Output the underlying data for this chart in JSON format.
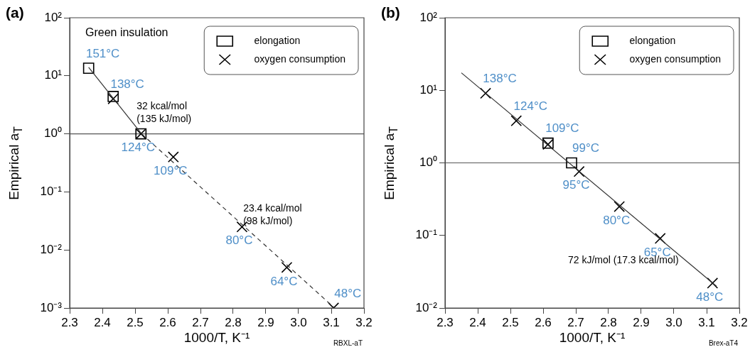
{
  "chart_data": [
    {
      "type": "scatter",
      "title": "(a)",
      "xlabel": "1000/T, K⁻¹",
      "ylabel": "Empirical a$_{T}$",
      "log": "y",
      "legend": "top right",
      "grid": false,
      "xlim": [
        2.3,
        3.2
      ],
      "xticks": [
        2.3,
        2.4,
        2.5,
        2.6,
        2.7,
        2.8,
        2.9,
        {
          "value": 3,
          "label": "3.0"
        },
        3.1,
        3.2
      ],
      "ylim": [
        0.001,
        100
      ],
      "yticks": [
        {
          "value": 0.001,
          "label": "10⁻³"
        },
        {
          "value": 0.01,
          "label": "10⁻²"
        },
        {
          "value": 0.1,
          "label": "10⁻¹"
        },
        {
          "value": 1,
          "label": "10⁰"
        },
        {
          "value": 10,
          "label": "10¹"
        },
        {
          "value": 100,
          "label": "10²"
        }
      ],
      "ref_lines": [
        {
          "axis": "y",
          "value": 1,
          "color": "#555555"
        }
      ],
      "series": [
        {
          "type": "line",
          "color": "#333333",
          "line_style": "solid",
          "marker": "none",
          "x": [
            2.358,
            2.52
          ],
          "values": [
            14,
            1.0
          ]
        },
        {
          "type": "line",
          "color": "#333333",
          "line_style": "dashed",
          "marker": "none",
          "x": [
            2.52,
            3.11
          ],
          "values": [
            1.0,
            0.001
          ]
        },
        {
          "name": "elongation",
          "color": "#000000",
          "marker": "square",
          "x": [
            2.358,
            2.433,
            2.518
          ],
          "values": [
            13.5,
            4.4,
            1.0
          ]
        },
        {
          "name": "oxygen consumption",
          "color": "#000000",
          "marker": "cross",
          "x": [
            2.433,
            2.518,
            2.617,
            2.827,
            2.964,
            3.107
          ],
          "values": [
            4.0,
            1.0,
            0.4,
            0.025,
            0.005,
            0.001
          ]
        }
      ],
      "annotations": [
        "Green insulation",
        {
          "text": "151°C",
          "x": 2.358,
          "y": 13.5
        },
        {
          "text": "138°C",
          "x": 2.433,
          "y": 4.0
        },
        {
          "text": "124°C",
          "x": 2.518,
          "y": 1.0
        },
        {
          "text": "109°C",
          "x": 2.617,
          "y": 0.4
        },
        {
          "text": "80°C",
          "x": 2.827,
          "y": 0.025
        },
        {
          "text": "64°C",
          "x": 2.964,
          "y": 0.005
        },
        {
          "text": "48°C",
          "x": 3.107,
          "y": 0.001
        },
        {
          "text": "32 kcal/mol\n(135 kJ/mol)",
          "x": 2.47,
          "y": 2.26
        },
        {
          "text": "23.4 kcal/mol\n(98 kJ/mol)",
          "x": 2.796,
          "y": 0.04
        },
        "RBXL-aT"
      ]
    },
    {
      "type": "scatter",
      "title": "(b)",
      "xlabel": "1000/T, K⁻¹",
      "ylabel": "Empirical a$_{T}$",
      "log": "y",
      "legend": "top right",
      "grid": false,
      "xlim": [
        2.3,
        3.2
      ],
      "xticks": [
        2.3,
        2.4,
        2.5,
        2.6,
        2.7,
        2.8,
        2.9,
        {
          "value": 3,
          "label": "3.0"
        },
        3.1,
        3.2
      ],
      "ylim": [
        0.01,
        100
      ],
      "yticks": [
        {
          "value": 0.01,
          "label": "10⁻²"
        },
        {
          "value": 0.1,
          "label": "10⁻¹"
        },
        {
          "value": 1,
          "label": "10⁰"
        },
        {
          "value": 10,
          "label": "10¹"
        },
        {
          "value": 100,
          "label": "10²"
        }
      ],
      "ref_lines": [
        {
          "axis": "y",
          "value": 1,
          "color": "#555555"
        }
      ],
      "series": [
        {
          "type": "line",
          "color": "#333333",
          "line_style": "solid",
          "marker": "none",
          "x": [
            2.35,
            3.13
          ],
          "values": [
            17.4,
            0.02
          ]
        },
        {
          "name": "elongation",
          "color": "#000000",
          "marker": "square",
          "x": [
            2.615,
            2.687
          ],
          "values": [
            1.87,
            1.0
          ]
        },
        {
          "name": "oxygen consumption",
          "color": "#000000",
          "marker": "cross",
          "x": [
            2.424,
            2.518,
            2.615,
            2.71,
            2.833,
            2.958,
            3.118
          ],
          "values": [
            9.1,
            3.8,
            1.8,
            0.76,
            0.25,
            0.091,
            0.022
          ]
        }
      ],
      "annotations": [
        {
          "text": "138°C",
          "x": 2.424,
          "y": 9.1
        },
        {
          "text": "124°C",
          "x": 2.518,
          "y": 3.8
        },
        {
          "text": "109°C",
          "x": 2.615,
          "y": 1.87
        },
        {
          "text": "99°C",
          "x": 2.687,
          "y": 1.0
        },
        {
          "text": "95°C",
          "x": 2.71,
          "y": 0.76
        },
        {
          "text": "80°C",
          "x": 2.833,
          "y": 0.25
        },
        {
          "text": "65°C",
          "x": 2.958,
          "y": 0.091
        },
        {
          "text": "48°C",
          "x": 3.118,
          "y": 0.022
        },
        {
          "text": "72 kJ/mol (17.3 kcal/mol)",
          "x": 3.036,
          "y": 0.045
        },
        "Brex-aT4"
      ]
    }
  ]
}
